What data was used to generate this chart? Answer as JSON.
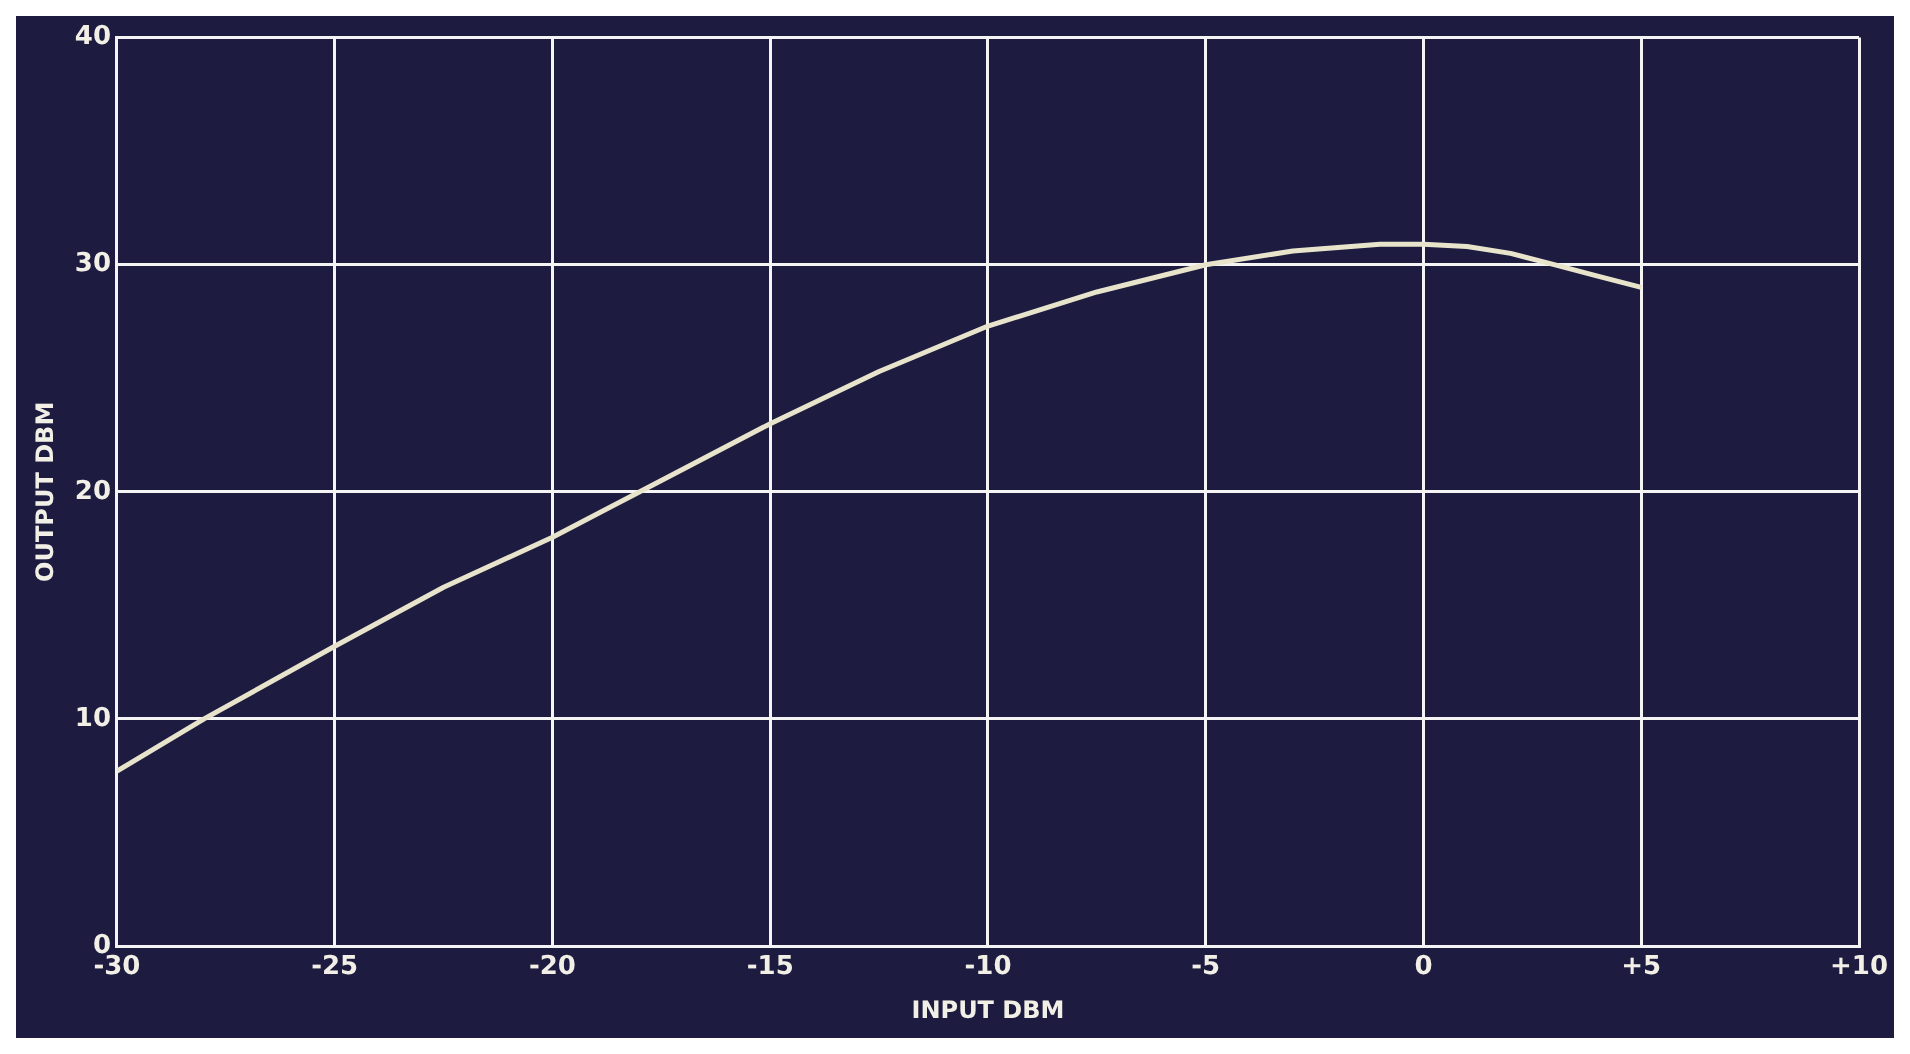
{
  "chart_data": {
    "type": "line",
    "xlabel": "INPUT DBM",
    "ylabel": "OUTPUT DBM",
    "x": [
      -30,
      -28,
      -25,
      -22.5,
      -20,
      -17.5,
      -15,
      -12.5,
      -10,
      -7.5,
      -5,
      -3,
      -1,
      0,
      1,
      2,
      3,
      4,
      5
    ],
    "series": [
      {
        "color": "#e8e4cc",
        "values": [
          7.7,
          10,
          13.2,
          15.8,
          18,
          20.5,
          23,
          25.3,
          27.3,
          28.8,
          30,
          30.6,
          30.9,
          30.9,
          30.8,
          30.5,
          30,
          29.5,
          29
        ]
      }
    ],
    "xlim": [
      -30,
      10
    ],
    "xticks": [
      -30,
      -25,
      -20,
      -15,
      -10,
      -5,
      0,
      {
        "value": 5,
        "label": "+5"
      },
      {
        "value": 10,
        "label": "+10"
      }
    ],
    "ylim": [
      0,
      40
    ],
    "yticks": [
      0,
      10,
      20,
      30,
      40
    ],
    "grid": true,
    "legend": false,
    "marker": "none",
    "line_style": "solid"
  }
}
